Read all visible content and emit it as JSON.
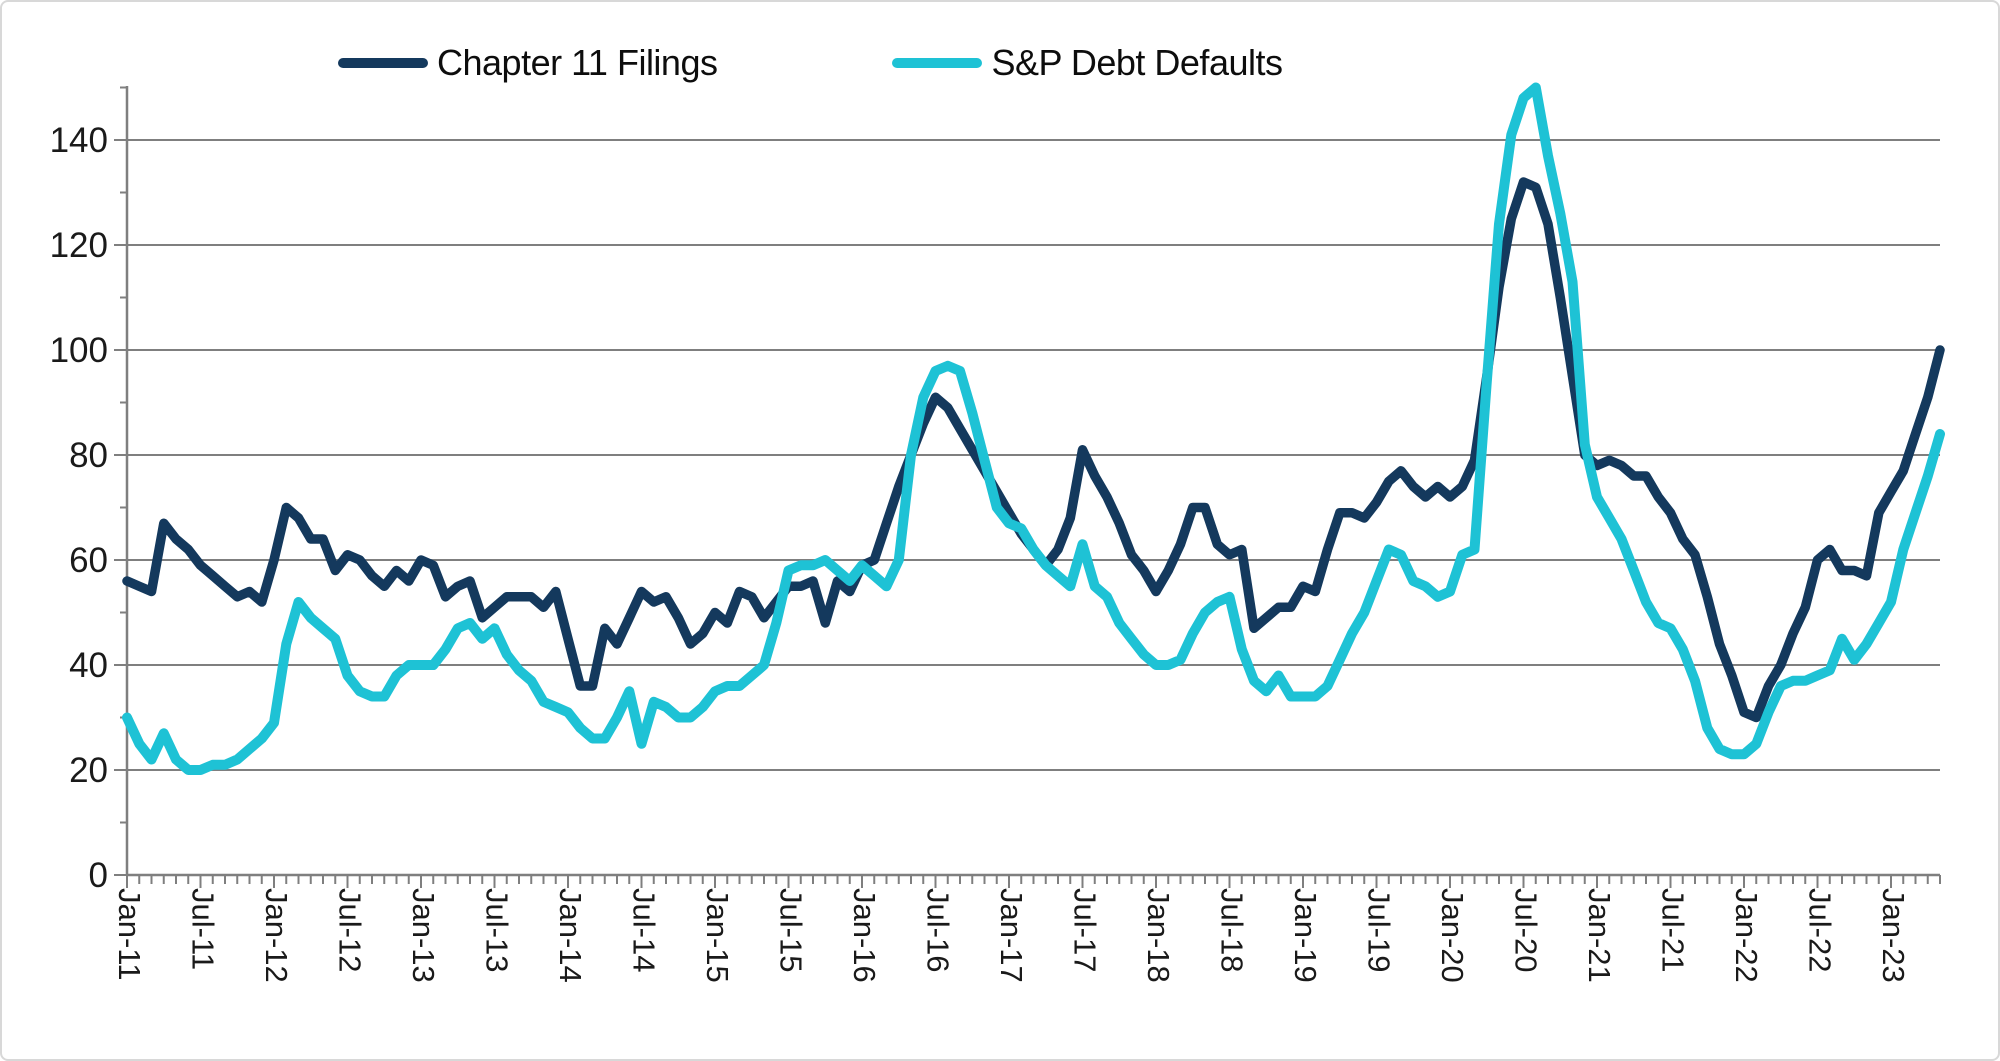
{
  "chart_data": {
    "type": "line",
    "title": "",
    "xlabel": "",
    "ylabel": "",
    "x_start": "Jan-2011",
    "x_end": "May-2023",
    "x_frequency": "monthly",
    "n_points": 149,
    "x_tick_every": 6,
    "x_tick_labels": [
      "Jan-11",
      "Jul-11",
      "Jan-12",
      "Jul-12",
      "Jan-13",
      "Jul-13",
      "Jan-14",
      "Jul-14",
      "Jan-15",
      "Jul-15",
      "Jan-16",
      "Jul-16",
      "Jan-17",
      "Jul-17",
      "Jan-18",
      "Jul-18",
      "Jan-19",
      "Jul-19",
      "Jan-20",
      "Jul-20",
      "Jan-21",
      "Jul-21",
      "Jan-22",
      "Jul-22",
      "Jan-23"
    ],
    "ylim": [
      0,
      155
    ],
    "yticks": [
      0,
      20,
      40,
      60,
      80,
      100,
      120,
      140
    ],
    "y_minor_step": 10,
    "grid": "horizontal",
    "legend_position": "top",
    "colors": {
      "grid": "#7f7f7f",
      "axis": "#7f7f7f",
      "tick_label": "#1a1a1a"
    },
    "series": [
      {
        "name": "Chapter 11 Filings",
        "color": "#14395D",
        "stroke_width": 9.5,
        "values": [
          56,
          55,
          54,
          67,
          64,
          62,
          59,
          57,
          55,
          53,
          54,
          52,
          60,
          70,
          68,
          64,
          64,
          58,
          61,
          60,
          57,
          55,
          58,
          56,
          60,
          59,
          53,
          55,
          56,
          49,
          51,
          53,
          53,
          53,
          51,
          54,
          45,
          36,
          36,
          47,
          44,
          49,
          54,
          52,
          53,
          49,
          44,
          46,
          50,
          48,
          54,
          53,
          49,
          52,
          55,
          55,
          56,
          48,
          56,
          54,
          59,
          60,
          67,
          74,
          80,
          86,
          91,
          89,
          85,
          81,
          77,
          73,
          69,
          65,
          62,
          59,
          62,
          68,
          81,
          76,
          72,
          67,
          61,
          58,
          54,
          58,
          63,
          70,
          70,
          63,
          61,
          62,
          47,
          49,
          51,
          51,
          55,
          54,
          62,
          69,
          69,
          68,
          71,
          75,
          77,
          74,
          72,
          74,
          72,
          74,
          79,
          95,
          112,
          125,
          132,
          131,
          124,
          110,
          95,
          80,
          78,
          79,
          78,
          76,
          76,
          72,
          69,
          64,
          61,
          53,
          44,
          38,
          31,
          30,
          36,
          40,
          46,
          51,
          60,
          62,
          58,
          58,
          57,
          69,
          73,
          77,
          84,
          91,
          100
        ]
      },
      {
        "name": "S&P Debt Defaults",
        "color": "#1EC2D5",
        "stroke_width": 10,
        "values": [
          30,
          25,
          22,
          27,
          22,
          20,
          20,
          21,
          21,
          22,
          24,
          26,
          29,
          44,
          52,
          49,
          47,
          45,
          38,
          35,
          34,
          34,
          38,
          40,
          40,
          40,
          43,
          47,
          48,
          45,
          47,
          42,
          39,
          37,
          33,
          32,
          31,
          28,
          26,
          26,
          30,
          35,
          25,
          33,
          32,
          30,
          30,
          32,
          35,
          36,
          36,
          38,
          40,
          48,
          58,
          59,
          59,
          60,
          58,
          56,
          59,
          57,
          55,
          60,
          80,
          91,
          96,
          97,
          96,
          88,
          79,
          70,
          67,
          66,
          62,
          59,
          57,
          55,
          63,
          55,
          53,
          48,
          45,
          42,
          40,
          40,
          41,
          46,
          50,
          52,
          53,
          43,
          37,
          35,
          38,
          34,
          34,
          34,
          36,
          41,
          46,
          50,
          56,
          62,
          61,
          56,
          55,
          53,
          54,
          61,
          62,
          94,
          124,
          141,
          148,
          150,
          137,
          126,
          113,
          82,
          72,
          68,
          64,
          58,
          52,
          48,
          47,
          43,
          37,
          28,
          24,
          23,
          23,
          25,
          31,
          36,
          37,
          37,
          38,
          39,
          45,
          41,
          44,
          48,
          52,
          62,
          69,
          76,
          84
        ]
      }
    ]
  }
}
